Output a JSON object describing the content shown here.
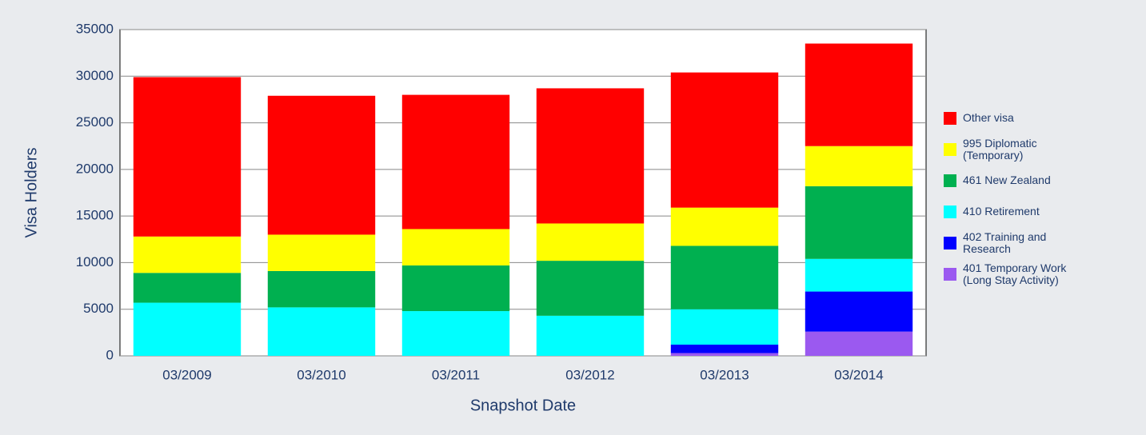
{
  "chart_data": {
    "type": "bar",
    "stacked": true,
    "xlabel": "Snapshot Date",
    "ylabel": "Visa Holders",
    "categories": [
      "03/2009",
      "03/2010",
      "03/2011",
      "03/2012",
      "03/2013",
      "03/2014"
    ],
    "series": [
      {
        "name": "401 Temporary Work (Long Stay Activity)",
        "color": "#9b59f0",
        "values": [
          0,
          0,
          0,
          0,
          300,
          2600
        ]
      },
      {
        "name": "402 Training and Research",
        "color": "#0000ff",
        "values": [
          0,
          0,
          0,
          0,
          900,
          4300
        ]
      },
      {
        "name": "410 Retirement",
        "color": "#00ffff",
        "values": [
          5700,
          5200,
          4800,
          4300,
          3800,
          3500
        ]
      },
      {
        "name": "461 New Zealand",
        "color": "#00b050",
        "values": [
          3200,
          3900,
          4900,
          5900,
          6800,
          7800
        ]
      },
      {
        "name": "995 Diplomatic (Temporary)",
        "color": "#ffff00",
        "values": [
          3900,
          3900,
          3900,
          4000,
          4100,
          4300
        ]
      },
      {
        "name": "Other visa",
        "color": "#ff0000",
        "values": [
          17100,
          14900,
          14400,
          14500,
          14500,
          11000
        ]
      }
    ],
    "ylim": [
      0,
      35000
    ],
    "yticks": [
      0,
      5000,
      10000,
      15000,
      20000,
      25000,
      30000,
      35000
    ],
    "grid": true,
    "legend": "right"
  }
}
